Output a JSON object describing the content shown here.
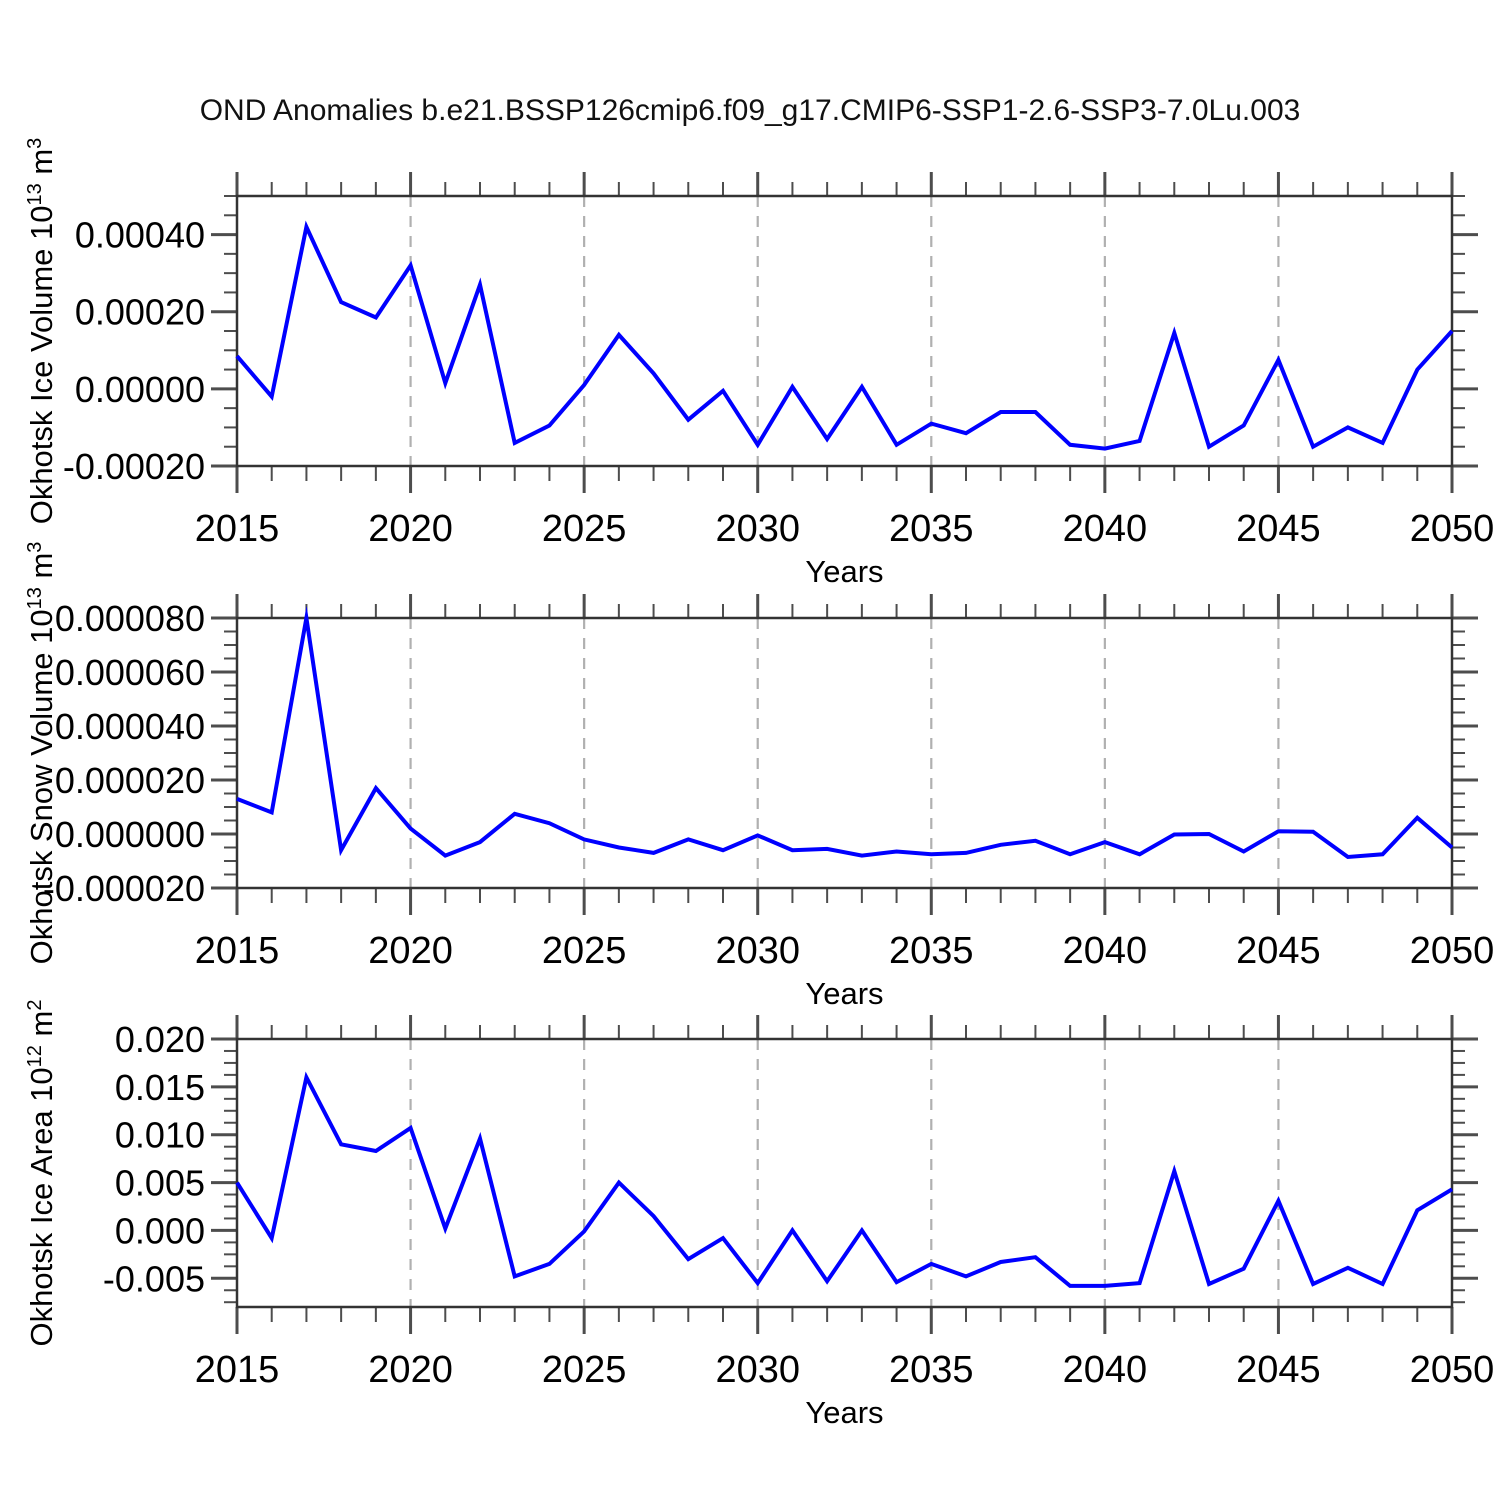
{
  "title": "OND Anomalies b.e21.BSSP126cmip6.f09_g17.CMIP6-SSP1-2.6-SSP3-7.0Lu.003",
  "colors": {
    "line": "#0000ff",
    "axis": "#333333",
    "tick": "#4d4d4d",
    "grid": "#b0b0b0",
    "text": "#000000"
  },
  "years": [
    2015,
    2016,
    2017,
    2018,
    2019,
    2020,
    2021,
    2022,
    2023,
    2024,
    2025,
    2026,
    2027,
    2028,
    2029,
    2030,
    2031,
    2032,
    2033,
    2034,
    2035,
    2036,
    2037,
    2038,
    2039,
    2040,
    2041,
    2042,
    2043,
    2044,
    2045,
    2046,
    2047,
    2048,
    2049,
    2050
  ],
  "xticks": [
    2015,
    2020,
    2025,
    2030,
    2035,
    2040,
    2045,
    2050
  ],
  "grid_years": [
    2020,
    2025,
    2030,
    2035,
    2040,
    2045
  ],
  "chart_data": [
    {
      "type": "line",
      "name": "ice-volume",
      "xlabel": "Years",
      "ylabel_text": "Okhotsk Ice Volume 10^13 m^3",
      "ylabel_parts": [
        {
          "text": "Okhotsk Ice Volume 10"
        },
        {
          "text": "13",
          "super": true
        },
        {
          "text": " m"
        },
        {
          "text": "3",
          "super": true
        }
      ],
      "xlim": [
        2015,
        2050
      ],
      "ylim": [
        -0.0002,
        0.0005
      ],
      "y_minor_step": 5e-05,
      "yticks": [
        {
          "v": -0.0002,
          "label": "-0.00020"
        },
        {
          "v": 0.0,
          "label": "0.00000"
        },
        {
          "v": 0.0002,
          "label": "0.00020"
        },
        {
          "v": 0.0004,
          "label": "0.00040"
        }
      ],
      "values": [
        8.5e-05,
        -2e-05,
        0.00042,
        0.000225,
        0.000185,
        0.00032,
        1.5e-05,
        0.00027,
        -0.00014,
        -9.5e-05,
        1e-05,
        0.00014,
        4e-05,
        -8e-05,
        -5e-06,
        -0.000145,
        5e-06,
        -0.00013,
        5e-06,
        -0.000145,
        -9e-05,
        -0.000115,
        -6e-05,
        -6e-05,
        -0.000145,
        -0.000155,
        -0.000135,
        0.000145,
        -0.00015,
        -9.5e-05,
        7.5e-05,
        -0.00015,
        -0.0001,
        -0.00014,
        5e-05,
        0.00015
      ]
    },
    {
      "type": "line",
      "name": "snow-volume",
      "xlabel": "Years",
      "ylabel_text": "Okhotsk Snow Volume 10^13 m^3",
      "ylabel_parts": [
        {
          "text": "Okhotsk Snow Volume 10"
        },
        {
          "text": "13",
          "super": true
        },
        {
          "text": " m"
        },
        {
          "text": "3",
          "super": true
        }
      ],
      "xlim": [
        2015,
        2050
      ],
      "ylim": [
        -2e-05,
        8e-05
      ],
      "y_minor_step": 5e-06,
      "yticks": [
        {
          "v": -2e-05,
          "label": "-0.000020"
        },
        {
          "v": 0.0,
          "label": "0.000000"
        },
        {
          "v": 2e-05,
          "label": "0.000020"
        },
        {
          "v": 4e-05,
          "label": "0.000040"
        },
        {
          "v": 6e-05,
          "label": "0.000060"
        },
        {
          "v": 8e-05,
          "label": "0.000080"
        }
      ],
      "values": [
        1.3e-05,
        8e-06,
        8e-05,
        -6e-06,
        1.7e-05,
        2e-06,
        -8e-06,
        -3e-06,
        7.5e-06,
        4e-06,
        -2e-06,
        -5e-06,
        -7e-06,
        -2e-06,
        -6e-06,
        -5e-07,
        -6e-06,
        -5.5e-06,
        -8e-06,
        -6.5e-06,
        -7.5e-06,
        -7e-06,
        -4e-06,
        -2.5e-06,
        -7.5e-06,
        -3e-06,
        -7.5e-06,
        -2e-07,
        0.0,
        -6.5e-06,
        1e-06,
        8e-07,
        -8.5e-06,
        -7.5e-06,
        6e-06,
        -5e-06
      ]
    },
    {
      "type": "line",
      "name": "ice-area",
      "xlabel": "Years",
      "ylabel_text": "Okhotsk Ice Area 10^12 m^2",
      "ylabel_parts": [
        {
          "text": "Okhotsk Ice Area 10"
        },
        {
          "text": "12",
          "super": true
        },
        {
          "text": " m"
        },
        {
          "text": "2",
          "super": true
        }
      ],
      "xlim": [
        2015,
        2050
      ],
      "ylim": [
        -0.008,
        0.02
      ],
      "y_minor_step": 0.00125,
      "yticks": [
        {
          "v": -0.005,
          "label": "-0.005"
        },
        {
          "v": 0.0,
          "label": "0.000"
        },
        {
          "v": 0.005,
          "label": "0.005"
        },
        {
          "v": 0.01,
          "label": "0.010"
        },
        {
          "v": 0.015,
          "label": "0.015"
        },
        {
          "v": 0.02,
          "label": "0.020"
        }
      ],
      "values": [
        0.005,
        -0.0008,
        0.016,
        0.009,
        0.0083,
        0.0107,
        0.0002,
        0.0096,
        -0.0048,
        -0.0035,
        -0.0001,
        0.005,
        0.0015,
        -0.003,
        -0.0008,
        -0.0055,
        0.0,
        -0.0053,
        0.0,
        -0.0054,
        -0.0035,
        -0.0048,
        -0.0033,
        -0.0028,
        -0.0058,
        -0.0058,
        -0.0055,
        0.0062,
        -0.0056,
        -0.004,
        0.0031,
        -0.0056,
        -0.0039,
        -0.0056,
        0.0021,
        0.0043
      ]
    }
  ]
}
